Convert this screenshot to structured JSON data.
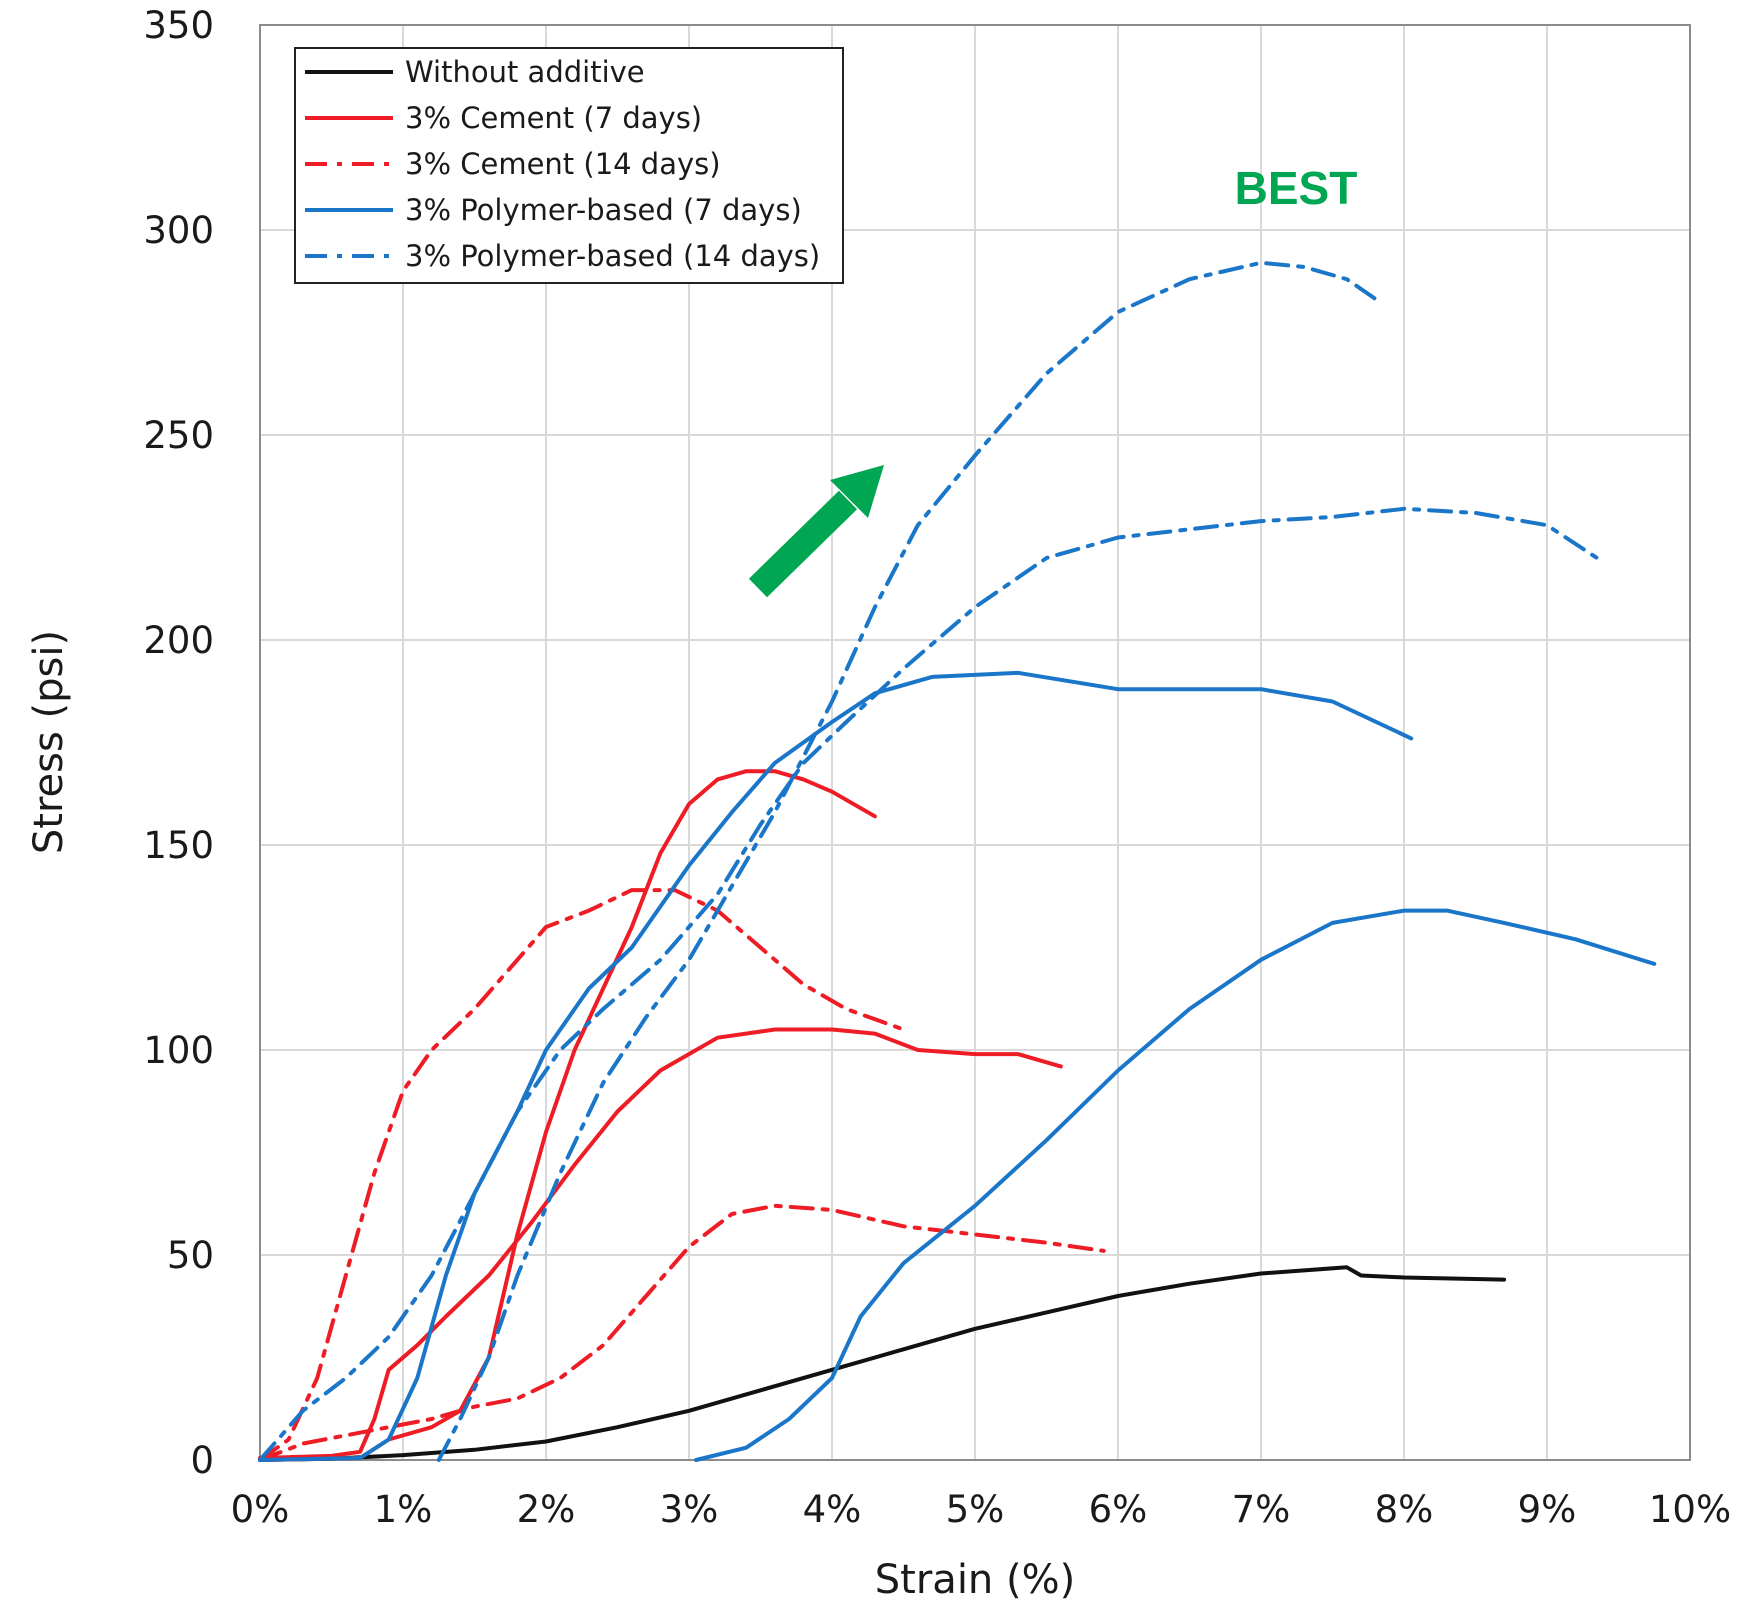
{
  "chart_data": {
    "type": "line",
    "title": "",
    "xlabel": "Strain (%)",
    "ylabel": "Stress (psi)",
    "xlim": [
      0,
      10
    ],
    "ylim": [
      0,
      350
    ],
    "x_ticks": [
      0,
      1,
      2,
      3,
      4,
      5,
      6,
      7,
      8,
      9,
      10
    ],
    "x_tick_labels": [
      "0%",
      "1%",
      "2%",
      "3%",
      "4%",
      "5%",
      "6%",
      "7%",
      "8%",
      "9%",
      "10%"
    ],
    "y_ticks": [
      0,
      50,
      100,
      150,
      200,
      250,
      300,
      350
    ],
    "y_tick_labels": [
      "0",
      "50",
      "100",
      "150",
      "200",
      "250",
      "300",
      "350"
    ],
    "grid": true,
    "legend_position": "top-left",
    "annotations": [
      {
        "text": "BEST",
        "color": "#00a651"
      },
      {
        "type": "arrow",
        "color": "#00a651"
      }
    ],
    "series": [
      {
        "name": "Without additive",
        "color": "#111111",
        "style": "solid",
        "points": [
          [
            0,
            0
          ],
          [
            0.5,
            0.3
          ],
          [
            1,
            1.2
          ],
          [
            1.5,
            2.5
          ],
          [
            2,
            4.5
          ],
          [
            2.5,
            8
          ],
          [
            3,
            12
          ],
          [
            3.5,
            17
          ],
          [
            4,
            22
          ],
          [
            4.5,
            27
          ],
          [
            5,
            32
          ],
          [
            5.5,
            36
          ],
          [
            6,
            40
          ],
          [
            6.5,
            43
          ],
          [
            7,
            45.5
          ],
          [
            7.6,
            47
          ],
          [
            7.7,
            45
          ],
          [
            8,
            44.5
          ],
          [
            8.7,
            44
          ]
        ]
      },
      {
        "name": "3% Cement (7 days)",
        "color": "#ee1c25",
        "style": "solid",
        "points": [
          [
            0,
            0.5
          ],
          [
            0.5,
            1
          ],
          [
            0.7,
            2
          ],
          [
            0.8,
            10
          ],
          [
            0.9,
            22
          ],
          [
            1.1,
            28
          ],
          [
            1.3,
            35
          ],
          [
            1.6,
            45
          ],
          [
            1.9,
            58
          ],
          [
            2.2,
            72
          ],
          [
            2.5,
            85
          ],
          [
            2.8,
            95
          ],
          [
            3.2,
            103
          ],
          [
            3.6,
            105
          ],
          [
            4,
            105
          ],
          [
            4.3,
            104
          ],
          [
            4.6,
            100
          ],
          [
            5,
            99
          ],
          [
            5.3,
            99
          ],
          [
            5.6,
            96
          ]
        ]
      },
      {
        "name": "3% Cement (7 days)",
        "color": "#ee1c25",
        "style": "solid",
        "points": [
          [
            0,
            0
          ],
          [
            0.7,
            0.5
          ],
          [
            0.9,
            5
          ],
          [
            1.2,
            8
          ],
          [
            1.4,
            12
          ],
          [
            1.6,
            25
          ],
          [
            1.8,
            55
          ],
          [
            2,
            80
          ],
          [
            2.2,
            100
          ],
          [
            2.4,
            115
          ],
          [
            2.6,
            130
          ],
          [
            2.8,
            148
          ],
          [
            3,
            160
          ],
          [
            3.2,
            166
          ],
          [
            3.4,
            168
          ],
          [
            3.6,
            168
          ],
          [
            3.8,
            166
          ],
          [
            4,
            163
          ],
          [
            4.3,
            157
          ]
        ]
      },
      {
        "name": "3% Cement (14 days)",
        "color": "#ee1c25",
        "style": "dashdot",
        "points": [
          [
            0,
            0
          ],
          [
            0.2,
            5
          ],
          [
            0.4,
            20
          ],
          [
            0.6,
            45
          ],
          [
            0.8,
            70
          ],
          [
            1,
            90
          ],
          [
            1.2,
            100
          ],
          [
            1.5,
            110
          ],
          [
            1.8,
            122
          ],
          [
            2,
            130
          ],
          [
            2.3,
            134
          ],
          [
            2.6,
            139
          ],
          [
            2.9,
            139
          ],
          [
            3.2,
            134
          ],
          [
            3.5,
            125
          ],
          [
            3.8,
            116
          ],
          [
            4.1,
            110
          ],
          [
            4.5,
            105
          ]
        ]
      },
      {
        "name": "3% Cement (14 days)",
        "color": "#ee1c25",
        "style": "dashdot",
        "points": [
          [
            0,
            0
          ],
          [
            0.3,
            4
          ],
          [
            0.6,
            6
          ],
          [
            0.9,
            8
          ],
          [
            1.2,
            10
          ],
          [
            1.5,
            13
          ],
          [
            1.8,
            15
          ],
          [
            2.1,
            20
          ],
          [
            2.4,
            28
          ],
          [
            2.7,
            40
          ],
          [
            3,
            52
          ],
          [
            3.3,
            60
          ],
          [
            3.6,
            62
          ],
          [
            4,
            61
          ],
          [
            4.5,
            57
          ],
          [
            5,
            55
          ],
          [
            5.5,
            53
          ],
          [
            5.9,
            51
          ]
        ]
      },
      {
        "name": "3% Polymer-based (7 days)",
        "color": "#1a76c8",
        "style": "solid",
        "points": [
          [
            0,
            0
          ],
          [
            0.7,
            0.5
          ],
          [
            0.9,
            5
          ],
          [
            1.1,
            20
          ],
          [
            1.3,
            45
          ],
          [
            1.5,
            65
          ],
          [
            1.8,
            85
          ],
          [
            2,
            100
          ],
          [
            2.3,
            115
          ],
          [
            2.6,
            125
          ],
          [
            2.8,
            135
          ],
          [
            3,
            145
          ],
          [
            3.3,
            158
          ],
          [
            3.6,
            170
          ],
          [
            4,
            180
          ],
          [
            4.3,
            187
          ],
          [
            4.7,
            191
          ],
          [
            5.3,
            192
          ],
          [
            6,
            188
          ],
          [
            6.5,
            188
          ],
          [
            7,
            188
          ],
          [
            7.5,
            185
          ],
          [
            8.05,
            176
          ]
        ]
      },
      {
        "name": "3% Polymer-based (7 days)",
        "color": "#1a76c8",
        "style": "solid",
        "points": [
          [
            3.05,
            0
          ],
          [
            3.4,
            3
          ],
          [
            3.7,
            10
          ],
          [
            4,
            20
          ],
          [
            4.2,
            35
          ],
          [
            4.5,
            48
          ],
          [
            5,
            62
          ],
          [
            5.5,
            78
          ],
          [
            6,
            95
          ],
          [
            6.5,
            110
          ],
          [
            7,
            122
          ],
          [
            7.5,
            131
          ],
          [
            8,
            134
          ],
          [
            8.3,
            134
          ],
          [
            8.7,
            131
          ],
          [
            9.2,
            127
          ],
          [
            9.75,
            121
          ]
        ]
      },
      {
        "name": "3% Polymer-based (14 days)",
        "color": "#1a76c8",
        "style": "dashdot",
        "points": [
          [
            0,
            0
          ],
          [
            0.3,
            12
          ],
          [
            0.6,
            20
          ],
          [
            0.9,
            30
          ],
          [
            1.2,
            45
          ],
          [
            1.5,
            65
          ],
          [
            1.8,
            85
          ],
          [
            2.1,
            100
          ],
          [
            2.4,
            110
          ],
          [
            2.8,
            122
          ],
          [
            3.2,
            138
          ],
          [
            3.5,
            155
          ],
          [
            3.8,
            170
          ],
          [
            4.1,
            180
          ],
          [
            4.5,
            193
          ],
          [
            5,
            208
          ],
          [
            5.5,
            220
          ],
          [
            6,
            225
          ],
          [
            6.5,
            227
          ],
          [
            7,
            229
          ],
          [
            7.5,
            230
          ],
          [
            8,
            232
          ],
          [
            8.5,
            231
          ],
          [
            9,
            228
          ],
          [
            9.35,
            220
          ]
        ]
      },
      {
        "name": "3% Polymer-based (14 days)",
        "color": "#1a76c8",
        "style": "dashdot",
        "points": [
          [
            1.25,
            0
          ],
          [
            1.4,
            10
          ],
          [
            1.6,
            25
          ],
          [
            1.8,
            45
          ],
          [
            2.1,
            70
          ],
          [
            2.4,
            92
          ],
          [
            2.7,
            108
          ],
          [
            3,
            122
          ],
          [
            3.3,
            140
          ],
          [
            3.6,
            158
          ],
          [
            4,
            185
          ],
          [
            4.3,
            208
          ],
          [
            4.6,
            228
          ],
          [
            5,
            245
          ],
          [
            5.5,
            265
          ],
          [
            6,
            280
          ],
          [
            6.5,
            288
          ],
          [
            7,
            292
          ],
          [
            7.3,
            291
          ],
          [
            7.6,
            288
          ],
          [
            7.85,
            282
          ]
        ]
      }
    ],
    "legend": [
      {
        "label": "Without additive",
        "color": "#111111",
        "style": "solid"
      },
      {
        "label": "3% Cement (7 days)",
        "color": "#ee1c25",
        "style": "solid"
      },
      {
        "label": "3% Cement (14 days)",
        "color": "#ee1c25",
        "style": "dashdot"
      },
      {
        "label": "3% Polymer-based (7 days)",
        "color": "#1a76c8",
        "style": "solid"
      },
      {
        "label": "3% Polymer-based (14 days)",
        "color": "#1a76c8",
        "style": "dashdot"
      }
    ]
  }
}
